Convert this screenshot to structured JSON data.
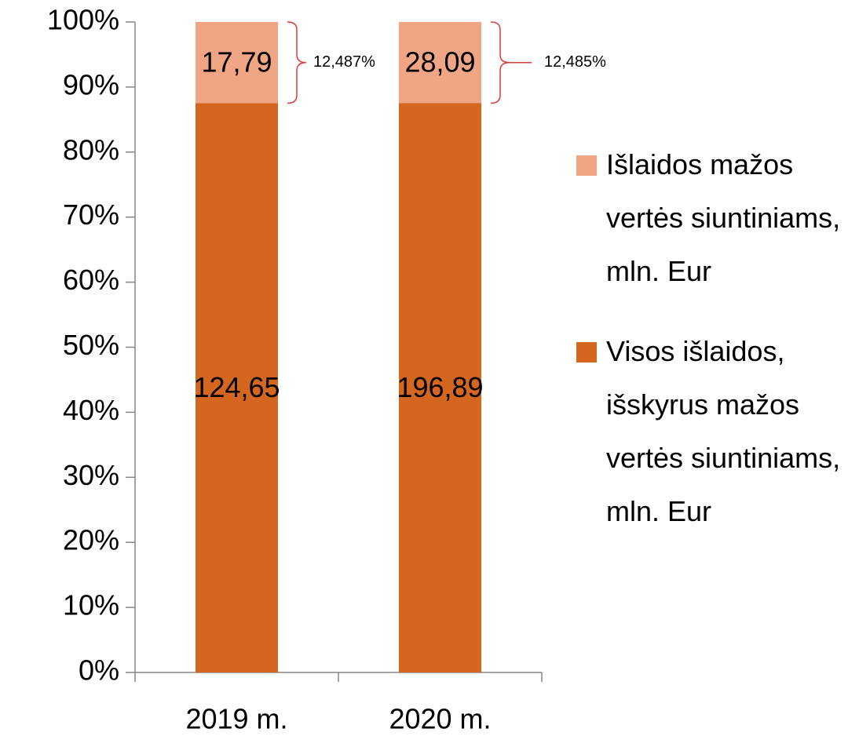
{
  "chart_data": {
    "type": "bar",
    "stacking": "percent",
    "categories": [
      "2019 m.",
      "2020 m."
    ],
    "series": [
      {
        "name": "Visos išlaidos, išskyrus mažos vertės siuntiniams, mln. Eur",
        "color": "#d4661f",
        "values": [
          124.65,
          196.89
        ],
        "value_labels": [
          "124,65",
          "196,89"
        ]
      },
      {
        "name": "Išlaidos mažos vertės siuntiniams, mln. Eur",
        "color": "#f0a585",
        "values": [
          17.79,
          28.09
        ],
        "value_labels": [
          "17,79",
          "28,09"
        ]
      }
    ],
    "annotations": [
      "12,487%",
      "12,485%"
    ],
    "ylim": [
      0,
      100
    ],
    "yticks": [
      {
        "value": 0,
        "label": "0%"
      },
      {
        "value": 10,
        "label": "10%"
      },
      {
        "value": 20,
        "label": "20%"
      },
      {
        "value": 30,
        "label": "30%"
      },
      {
        "value": 40,
        "label": "40%"
      },
      {
        "value": 50,
        "label": "50%"
      },
      {
        "value": 60,
        "label": "60%"
      },
      {
        "value": 70,
        "label": "70%"
      },
      {
        "value": 80,
        "label": "80%"
      },
      {
        "value": 90,
        "label": "90%"
      },
      {
        "value": 100,
        "label": "100%"
      }
    ],
    "legend": "right",
    "grid": false
  }
}
